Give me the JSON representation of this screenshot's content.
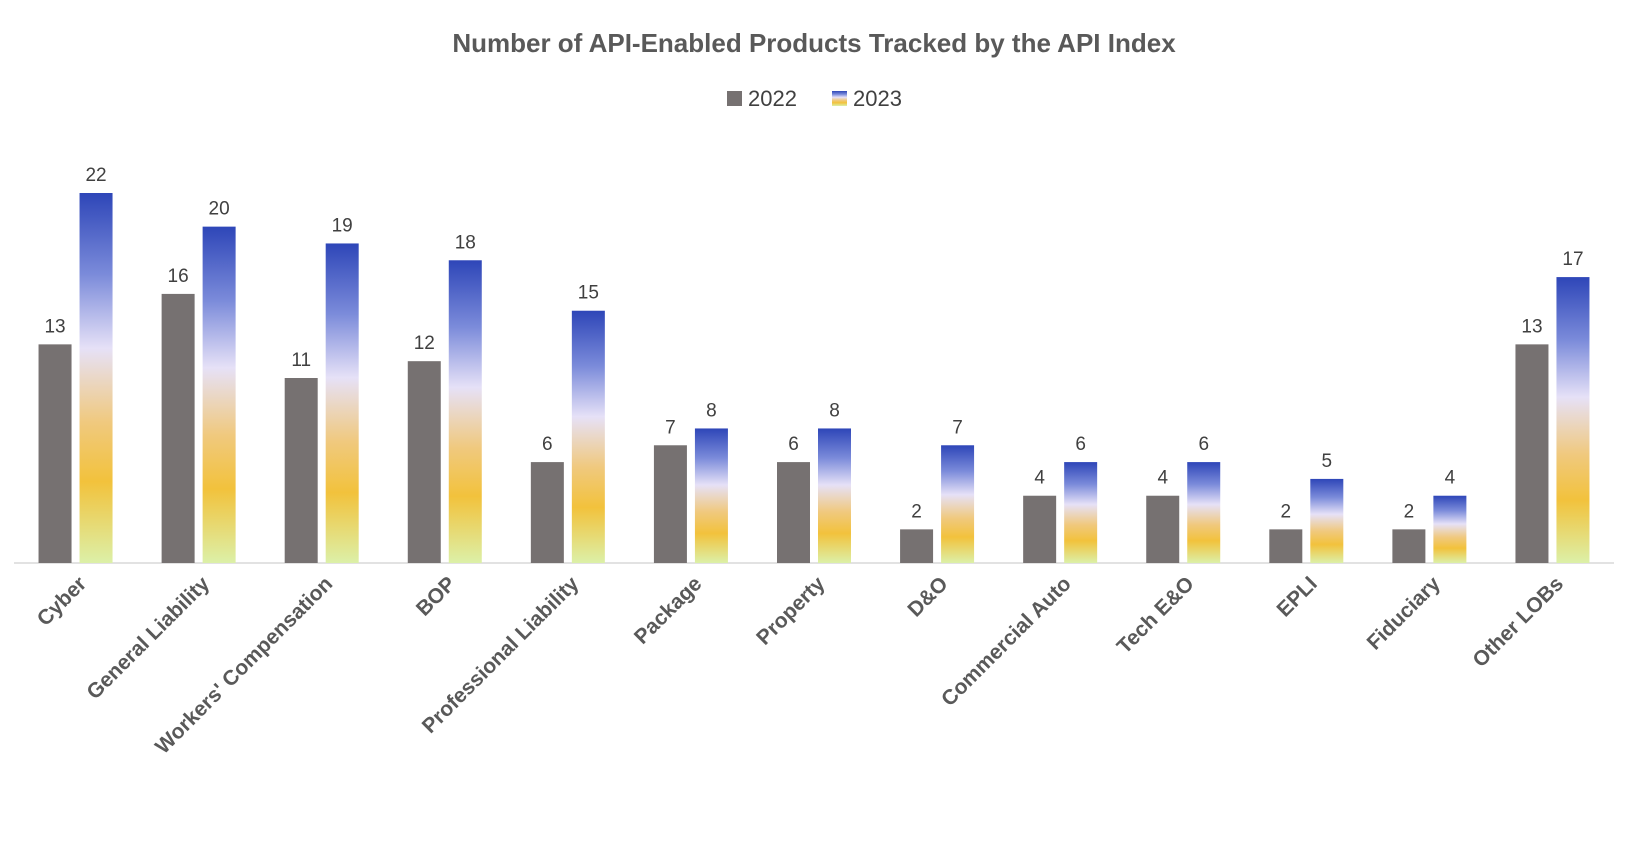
{
  "chart_data": {
    "type": "bar",
    "title": "Number of API-Enabled Products Tracked by the API Index",
    "xlabel": "",
    "ylabel": "",
    "ylim": [
      0,
      22
    ],
    "grid": false,
    "legend_position": "top-center",
    "categories": [
      "Cyber",
      "General Liability",
      "Workers' Compensation",
      "BOP",
      "Professional Liability",
      "Package",
      "Property",
      "D&O",
      "Commercial Auto",
      "Tech E&O",
      "EPLI",
      "Fiduciary",
      "Other LOBs"
    ],
    "series": [
      {
        "name": "2022",
        "values": [
          13,
          16,
          11,
          12,
          6,
          7,
          6,
          2,
          4,
          4,
          2,
          2,
          13
        ],
        "color": "#767171"
      },
      {
        "name": "2023",
        "values": [
          22,
          20,
          19,
          18,
          15,
          8,
          8,
          7,
          6,
          6,
          5,
          4,
          17
        ],
        "gradient": [
          "#2E46B8",
          "#7B8BDA",
          "#E6E1F7",
          "#F0C97E",
          "#F2C23C",
          "#DCF0A8"
        ]
      }
    ]
  },
  "colors": {
    "title": "#595959",
    "axis": "#D9D9D9",
    "text": "#404040"
  }
}
